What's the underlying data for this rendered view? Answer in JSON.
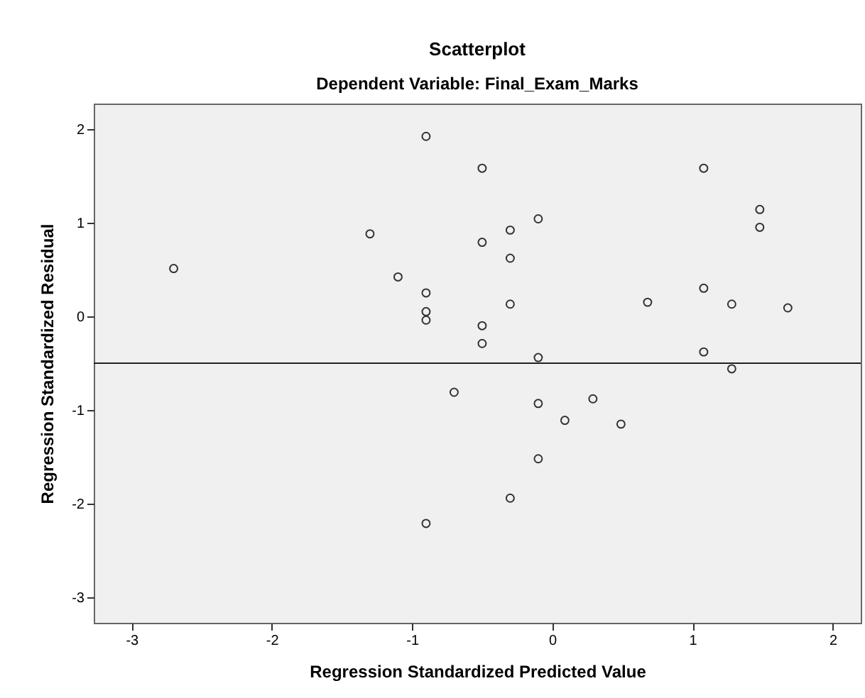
{
  "chart_data": {
    "type": "scatter",
    "title": "Scatterplot",
    "subtitle": "Dependent Variable: Final_Exam_Marks",
    "xlabel": "Regression Standardized Predicted Value",
    "ylabel": "Regression Standardized Residual",
    "x": [
      -2.7,
      -1.3,
      -1.1,
      -0.9,
      -0.9,
      -0.9,
      -0.9,
      -0.7,
      -0.9,
      -0.5,
      -0.5,
      -0.5,
      -0.5,
      -0.3,
      -0.3,
      -0.3,
      -0.3,
      -0.1,
      -0.1,
      -0.1,
      -0.1,
      0.09,
      0.29,
      0.49,
      0.68,
      1.08,
      1.08,
      1.08,
      1.28,
      1.28,
      1.48,
      1.48,
      1.68
    ],
    "values": [
      0.51,
      0.88,
      0.42,
      1.92,
      0.25,
      0.05,
      -0.04,
      -0.81,
      -2.21,
      1.58,
      0.79,
      -0.1,
      -0.29,
      0.92,
      0.62,
      0.13,
      -1.94,
      1.04,
      -0.44,
      -0.93,
      -1.52,
      -1.11,
      -0.88,
      -1.15,
      0.15,
      1.58,
      0.3,
      -0.38,
      0.13,
      -0.56,
      1.14,
      0.95,
      0.09
    ],
    "color": "#333333",
    "marker": "circle",
    "xlim": [
      -3.27,
      2.2
    ],
    "ylim": [
      -3.27,
      2.27
    ],
    "xticks": [
      -3,
      -2,
      -1,
      0,
      1,
      2
    ],
    "yticks": [
      -3,
      -2,
      -1,
      0,
      1,
      2
    ],
    "ref_lines": [
      {
        "axis": "y",
        "value": -0.5,
        "color": "#222222"
      }
    ]
  }
}
